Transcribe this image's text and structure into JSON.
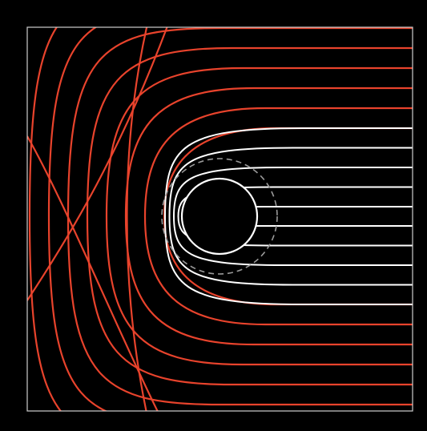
{
  "diagram": {
    "colors": {
      "background": "#000000",
      "frame": "#cfcfcf",
      "outer_lines": "#e8432c",
      "inner_lines": "#ffffff",
      "dashed_circle": "#9a9a9a",
      "central_circle_fill": "#000000",
      "central_circle_stroke": "#ffffff"
    },
    "outer_line_count": 16,
    "inner_line_count": 10,
    "cross_line_count": 3
  }
}
